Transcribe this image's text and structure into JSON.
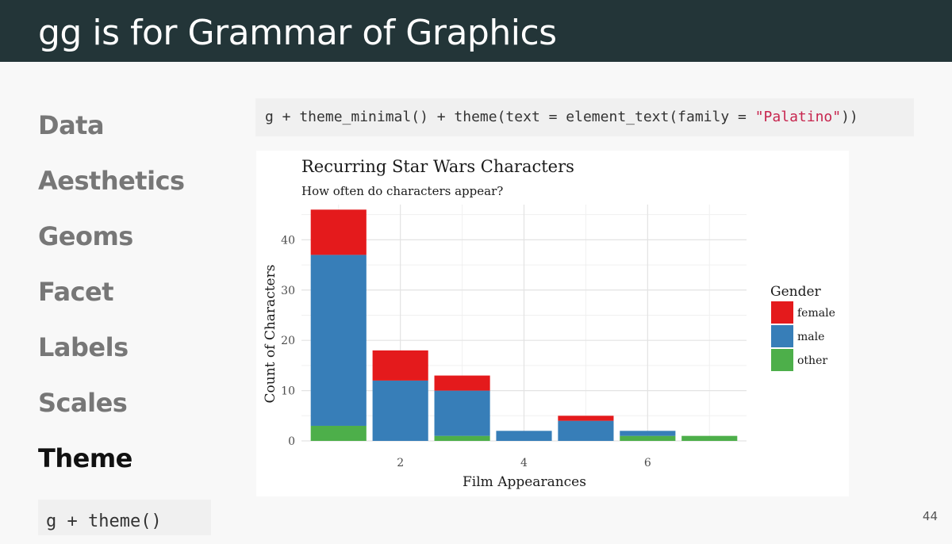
{
  "header": {
    "title": "gg is for Grammar of Graphics"
  },
  "nav": {
    "items": [
      "Data",
      "Aesthetics",
      "Geoms",
      "Facet",
      "Labels",
      "Scales",
      "Theme"
    ],
    "active_index": 6
  },
  "code": {
    "line_prefix": "g + theme_minimal() + theme(text = element_text(family = ",
    "line_string": "\"Palatino\"",
    "line_suffix": "))",
    "bottom": "g + theme()"
  },
  "page_number": "44",
  "colors": {
    "header_bg": "#233538",
    "female": "#E41A1C",
    "male": "#377EB8",
    "other": "#4DAF4A",
    "string": "#c7254e"
  },
  "chart_data": {
    "type": "bar",
    "stacked": true,
    "title": "Recurring Star Wars Characters",
    "subtitle": "How often do characters appear?",
    "xlabel": "Film Appearances",
    "ylabel": "Count of Characters",
    "x": [
      1,
      2,
      3,
      4,
      5,
      6,
      7
    ],
    "x_ticks": [
      2,
      4,
      6
    ],
    "y_ticks": [
      0,
      10,
      20,
      30,
      40
    ],
    "ylim": [
      0,
      47
    ],
    "xlim": [
      0.4,
      7.6
    ],
    "grid": true,
    "legend": {
      "title": "Gender",
      "position": "right"
    },
    "series": [
      {
        "name": "other",
        "values": [
          3,
          0,
          1,
          0,
          0,
          1,
          1
        ]
      },
      {
        "name": "male",
        "values": [
          34,
          12,
          9,
          2,
          4,
          1,
          0
        ]
      },
      {
        "name": "female",
        "values": [
          9,
          6,
          3,
          0,
          1,
          0,
          0
        ]
      }
    ]
  }
}
